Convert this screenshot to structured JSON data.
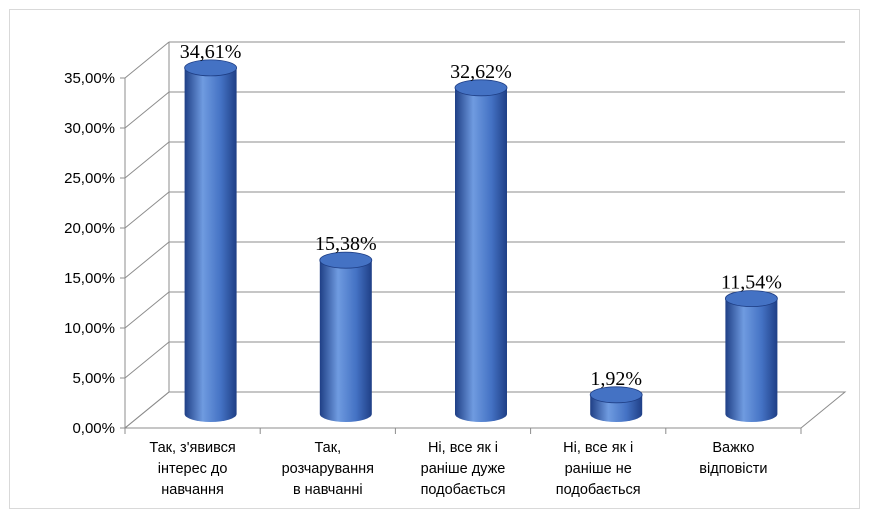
{
  "chart_data": {
    "type": "bar",
    "style": "3d-cylinder",
    "title": "",
    "xlabel": "",
    "ylabel": "",
    "ylim": [
      0,
      35
    ],
    "y_ticks": [
      "0,00%",
      "5,00%",
      "10,00%",
      "15,00%",
      "20,00%",
      "25,00%",
      "30,00%",
      "35,00%"
    ],
    "grid": true,
    "legend": "none",
    "categories": [
      [
        "Так, з'явився",
        "інтерес до",
        "навчання"
      ],
      [
        "Так,",
        "розчарування",
        "в навчанні"
      ],
      [
        "Ні, все як і",
        "раніше дуже",
        "подобається"
      ],
      [
        "Ні, все як і",
        "раніше не",
        "подобається"
      ],
      [
        "Важко",
        "відповісти"
      ]
    ],
    "values": [
      34.61,
      15.38,
      32.62,
      1.92,
      11.54
    ],
    "data_labels": [
      "34,61%",
      "15,38%",
      "32,62%",
      "1,92%",
      "11,54%"
    ],
    "colors": {
      "bar": "#4472c4",
      "bar_dark": "#1f3f86",
      "bar_light": "#6f9be0",
      "grid": "#8c8c8c"
    }
  }
}
